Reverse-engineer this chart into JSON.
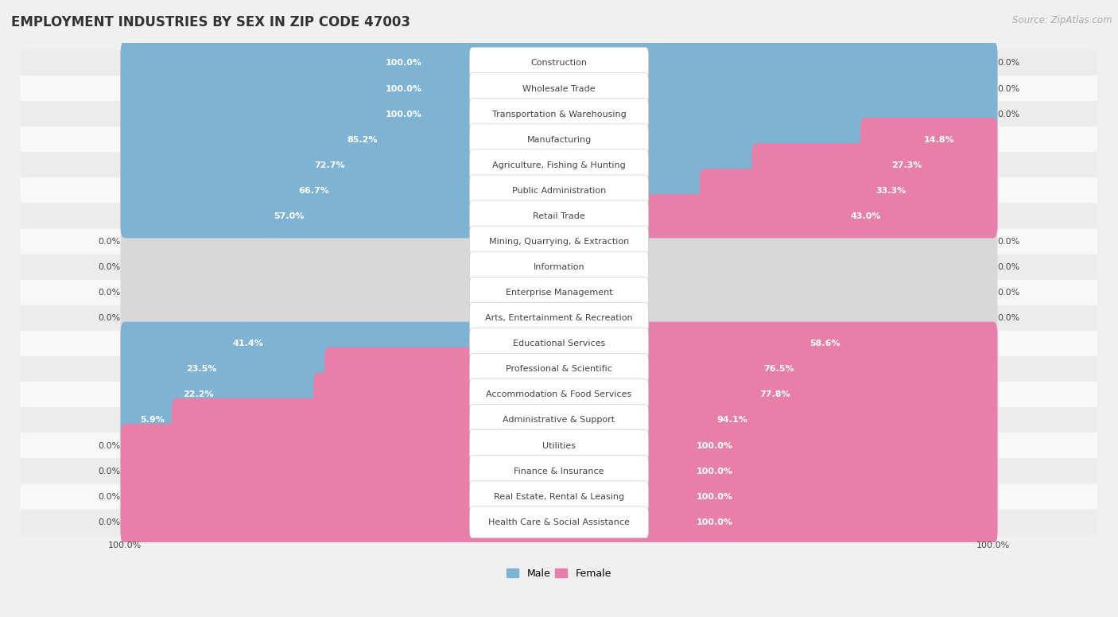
{
  "title": "EMPLOYMENT INDUSTRIES BY SEX IN ZIP CODE 47003",
  "source": "Source: ZipAtlas.com",
  "categories": [
    "Construction",
    "Wholesale Trade",
    "Transportation & Warehousing",
    "Manufacturing",
    "Agriculture, Fishing & Hunting",
    "Public Administration",
    "Retail Trade",
    "Mining, Quarrying, & Extraction",
    "Information",
    "Enterprise Management",
    "Arts, Entertainment & Recreation",
    "Educational Services",
    "Professional & Scientific",
    "Accommodation & Food Services",
    "Administrative & Support",
    "Utilities",
    "Finance & Insurance",
    "Real Estate, Rental & Leasing",
    "Health Care & Social Assistance"
  ],
  "male_pct": [
    100.0,
    100.0,
    100.0,
    85.2,
    72.7,
    66.7,
    57.0,
    0.0,
    0.0,
    0.0,
    0.0,
    41.4,
    23.5,
    22.2,
    5.9,
    0.0,
    0.0,
    0.0,
    0.0
  ],
  "female_pct": [
    0.0,
    0.0,
    0.0,
    14.8,
    27.3,
    33.3,
    43.0,
    0.0,
    0.0,
    0.0,
    0.0,
    58.6,
    76.5,
    77.8,
    94.1,
    100.0,
    100.0,
    100.0,
    100.0
  ],
  "male_color": "#7fb3d3",
  "female_color": "#e87fa8",
  "row_bg_even": "#ececec",
  "row_bg_odd": "#f8f8f8",
  "bar_area_bg": "#d8d8d8",
  "label_pill_color": "#ffffff",
  "title_fontsize": 12,
  "source_fontsize": 8.5,
  "cat_label_fontsize": 8,
  "pct_label_fontsize": 8
}
